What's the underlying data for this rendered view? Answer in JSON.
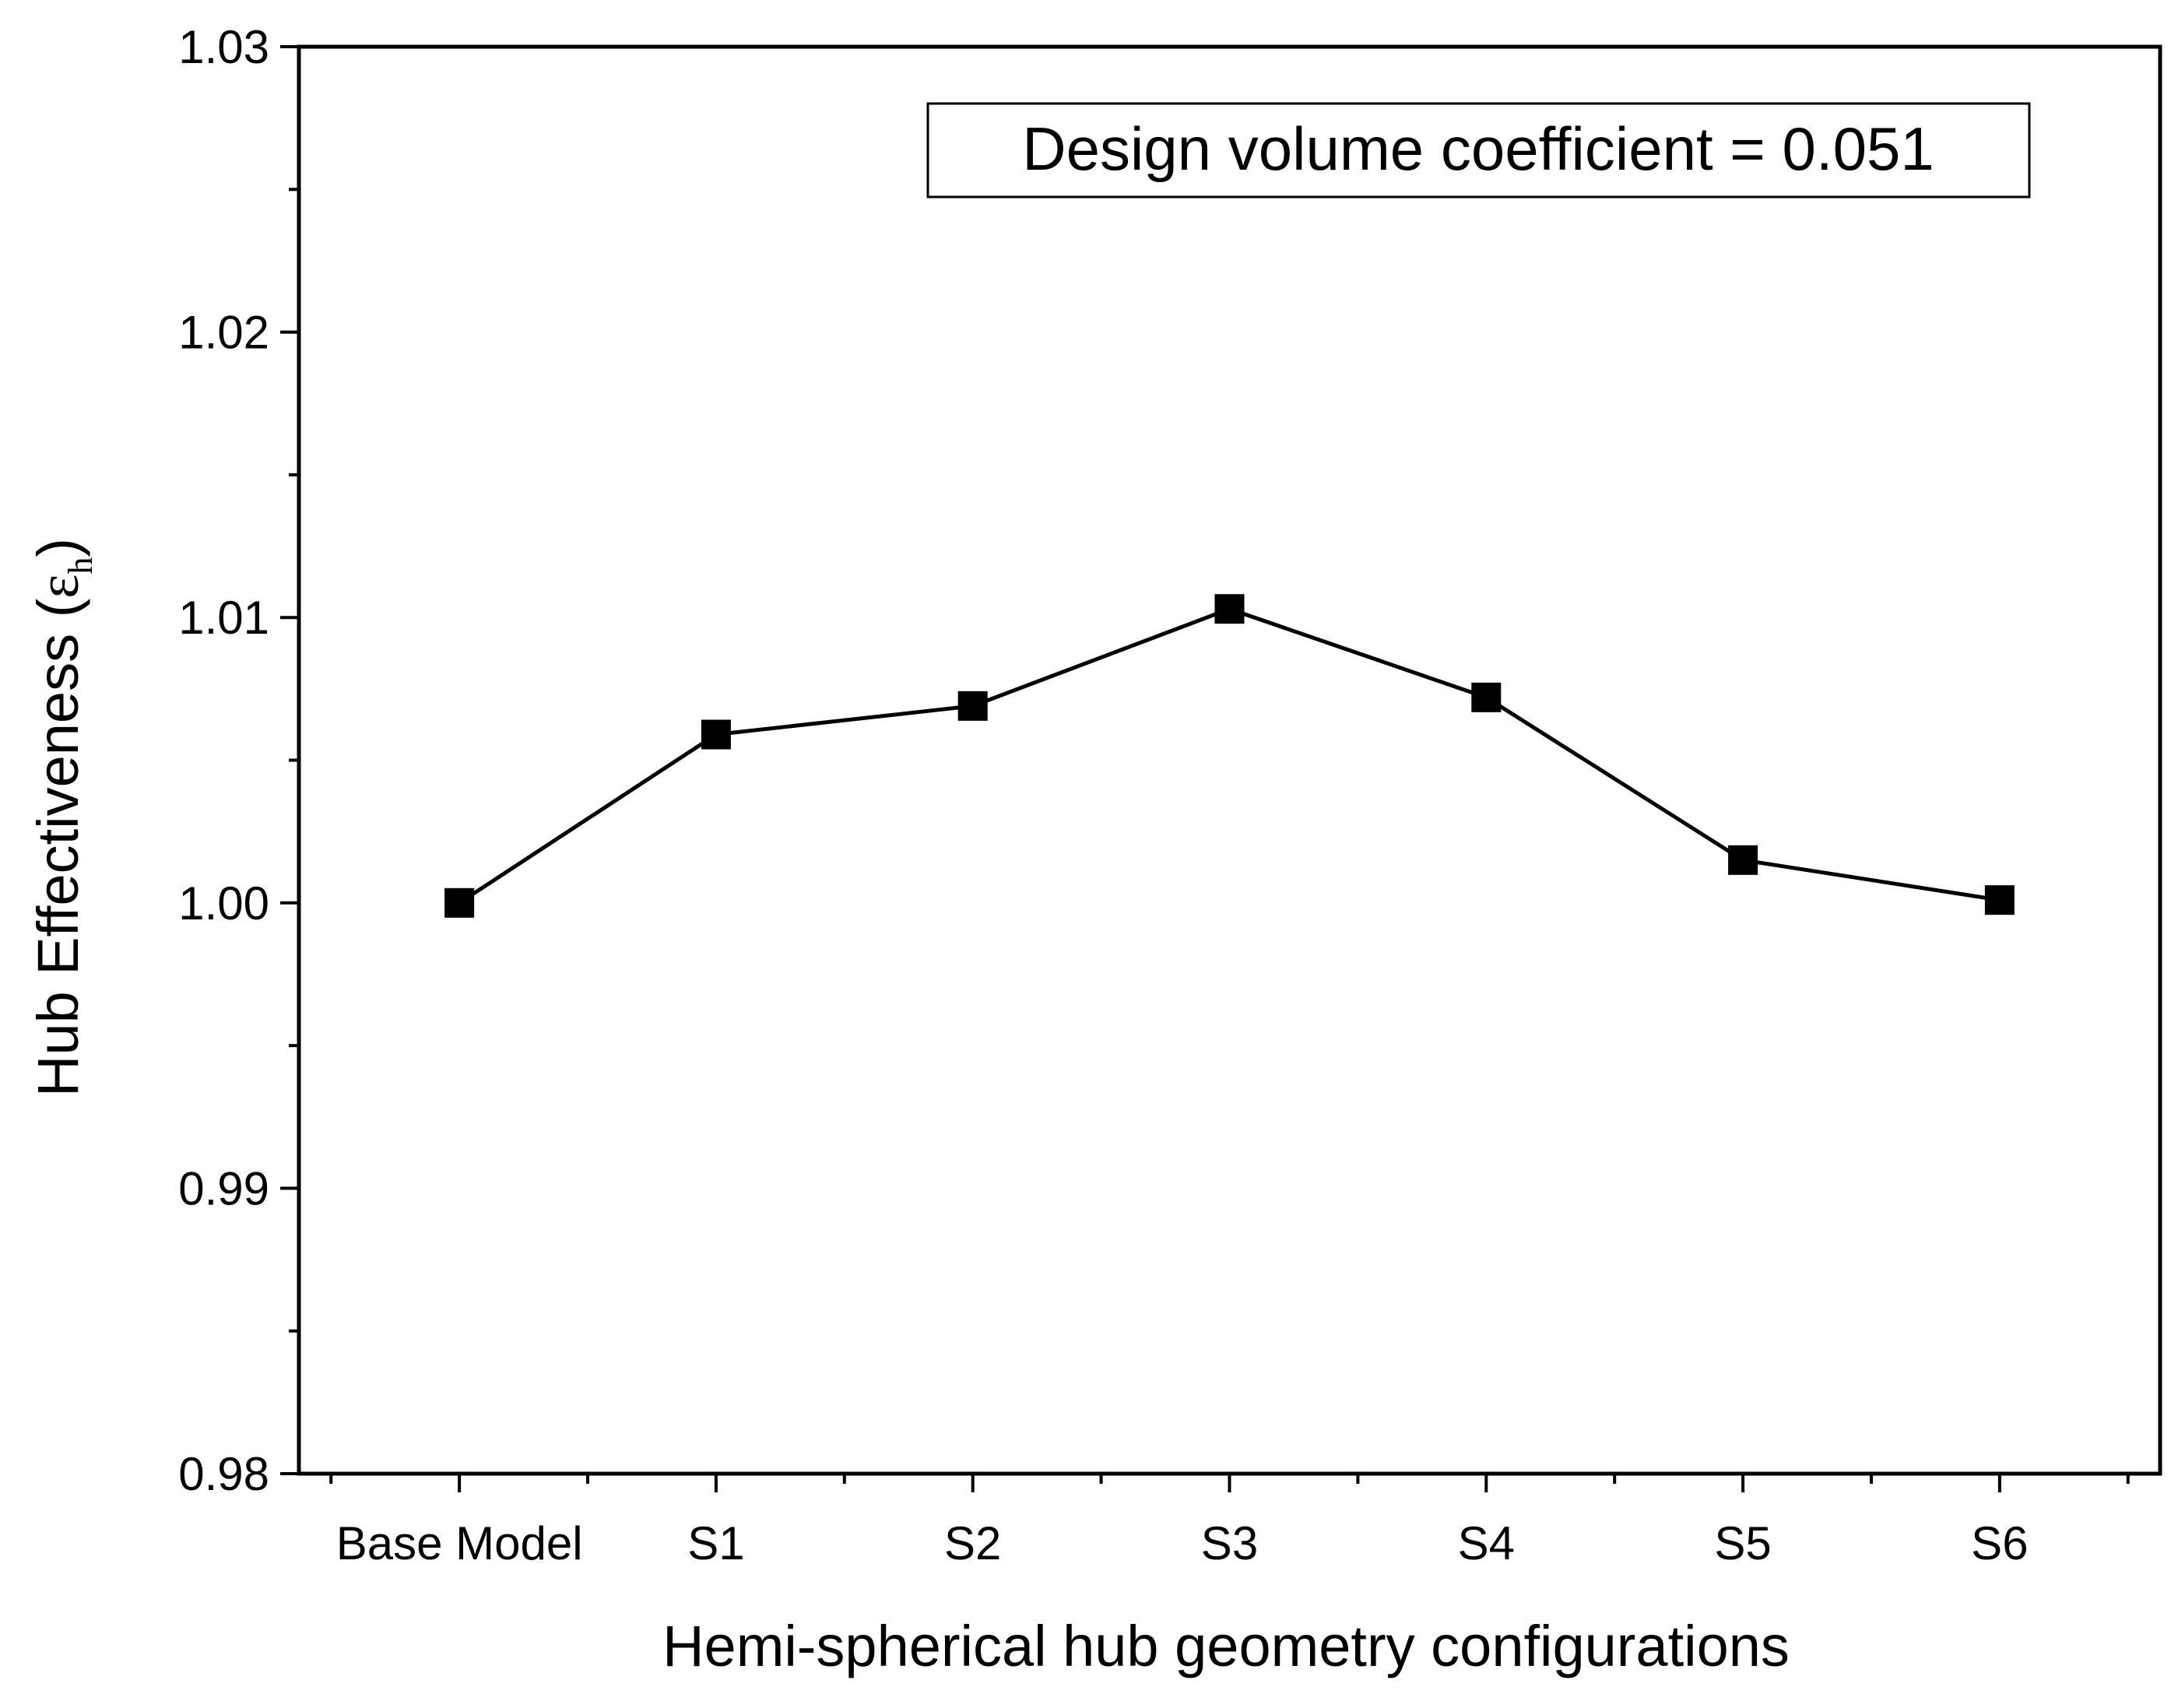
{
  "chart_data": {
    "type": "line",
    "title": "",
    "xlabel": "Hemi-spherical hub geometry configurations",
    "ylabel": {
      "main": "Hub Effectiveness (",
      "symbol": "ε",
      "subscript": "h",
      "close": ")"
    },
    "categories": [
      "Base Model",
      "S1",
      "S2",
      "S3",
      "S4",
      "S5",
      "S6"
    ],
    "values": [
      1.0,
      1.0059,
      1.0069,
      1.0103,
      1.0072,
      1.0015,
      1.0001
    ],
    "ylim": [
      0.98,
      1.03
    ],
    "yticks": [
      "0.98",
      "0.99",
      "1.00",
      "1.01",
      "1.02",
      "1.03"
    ],
    "grid": false,
    "marker": "square",
    "line_color": "#000000",
    "marker_color": "#000000",
    "annotation": {
      "text": "Design volume coefficient = 0.051",
      "placement": "top-right"
    }
  }
}
